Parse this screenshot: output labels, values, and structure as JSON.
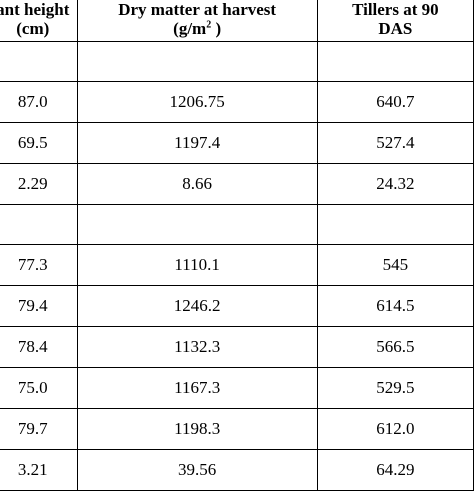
{
  "headers": {
    "col1_line1": "ant height",
    "col1_line2": "(cm)",
    "col2_line1": "Dry matter at harvest",
    "col2_line2_pre": "(g/m",
    "col2_line2_sup": "2",
    "col2_line2_post": " )",
    "col3_line1": "Tillers at 90",
    "col3_line2": "DAS"
  },
  "group1": [
    {
      "c1": "87.0",
      "c2": "1206.75",
      "c3": "640.7"
    },
    {
      "c1": "69.5",
      "c2": "1197.4",
      "c3": "527.4"
    },
    {
      "c1": "2.29",
      "c2": "8.66",
      "c3": "24.32"
    }
  ],
  "group2": [
    {
      "c1": "77.3",
      "c2": "1110.1",
      "c3": "545"
    },
    {
      "c1": "79.4",
      "c2": "1246.2",
      "c3": "614.5"
    },
    {
      "c1": "78.4",
      "c2": "1132.3",
      "c3": "566.5"
    },
    {
      "c1": "75.0",
      "c2": "1167.3",
      "c3": "529.5"
    },
    {
      "c1": "79.7",
      "c2": "1198.3",
      "c3": "612.0"
    },
    {
      "c1": "3.21",
      "c2": "39.56",
      "c3": "64.29"
    }
  ]
}
